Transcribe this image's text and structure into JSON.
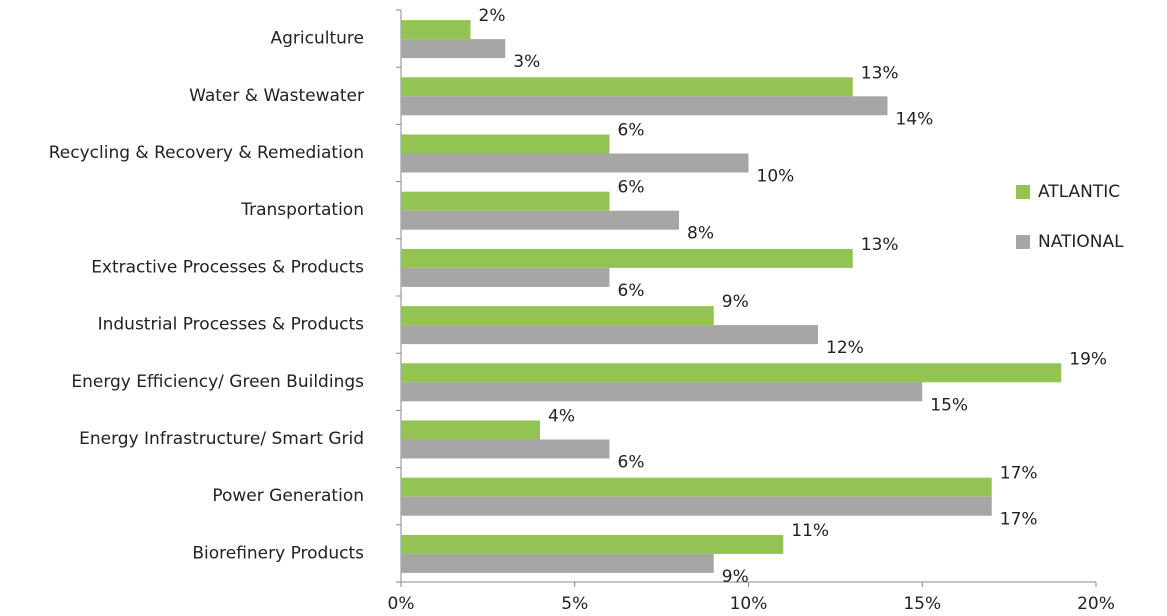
{
  "chart_data": {
    "type": "bar",
    "orientation": "horizontal",
    "categories": [
      "Agriculture",
      "Water & Wastewater",
      "Recycling & Recovery & Remediation",
      "Transportation",
      "Extractive Processes & Products",
      "Industrial Processes & Products",
      "Energy Efficiency/ Green Buildings",
      "Energy Infrastructure/ Smart Grid",
      "Power Generation",
      "Biorefinery Products"
    ],
    "series": [
      {
        "name": "ATLANTIC",
        "color": "#92c353",
        "values": [
          2,
          13,
          6,
          6,
          13,
          9,
          19,
          4,
          17,
          11
        ],
        "value_labels": [
          "2%",
          "13%",
          "6%",
          "6%",
          "13%",
          "9%",
          "19%",
          "4%",
          "17%",
          "11%"
        ]
      },
      {
        "name": "NATIONAL",
        "color": "#a6a6a6",
        "values": [
          3,
          14,
          10,
          8,
          6,
          12,
          15,
          6,
          17,
          9
        ],
        "value_labels": [
          "3%",
          "14%",
          "10%",
          "8%",
          "6%",
          "12%",
          "15%",
          "6%",
          "17%",
          "9%"
        ]
      }
    ],
    "xlim": [
      0,
      20
    ],
    "xticks": [
      {
        "value": 0,
        "label": "0%"
      },
      {
        "value": 5,
        "label": "5%"
      },
      {
        "value": 10,
        "label": "10%"
      },
      {
        "value": 15,
        "label": "15%"
      },
      {
        "value": 20,
        "label": "20%"
      }
    ],
    "legend": "right"
  }
}
